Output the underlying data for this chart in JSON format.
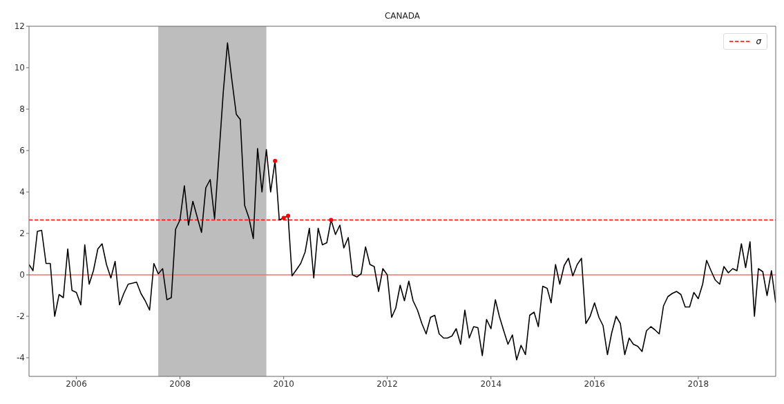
{
  "chart_data": {
    "type": "line",
    "title": "CANADA",
    "x": [
      "2005-02",
      "2005-03",
      "2005-04",
      "2005-05",
      "2005-06",
      "2005-07",
      "2005-08",
      "2005-09",
      "2005-10",
      "2005-11",
      "2005-12",
      "2006-01",
      "2006-02",
      "2006-03",
      "2006-04",
      "2006-05",
      "2006-06",
      "2006-07",
      "2006-08",
      "2006-09",
      "2006-10",
      "2006-11",
      "2006-12",
      "2007-01",
      "2007-02",
      "2007-03",
      "2007-04",
      "2007-05",
      "2007-06",
      "2007-07",
      "2007-08",
      "2007-09",
      "2007-10",
      "2007-11",
      "2007-12",
      "2008-01",
      "2008-02",
      "2008-03",
      "2008-04",
      "2008-05",
      "2008-06",
      "2008-07",
      "2008-08",
      "2008-09",
      "2008-10",
      "2008-11",
      "2008-12",
      "2009-01",
      "2009-02",
      "2009-03",
      "2009-04",
      "2009-05",
      "2009-06",
      "2009-07",
      "2009-08",
      "2009-09",
      "2009-10",
      "2009-11",
      "2009-12",
      "2010-01",
      "2010-02",
      "2010-03",
      "2010-04",
      "2010-05",
      "2010-06",
      "2010-07",
      "2010-08",
      "2010-09",
      "2010-10",
      "2010-11",
      "2010-12",
      "2011-01",
      "2011-02",
      "2011-03",
      "2011-04",
      "2011-05",
      "2011-06",
      "2011-07",
      "2011-08",
      "2011-09",
      "2011-10",
      "2011-11",
      "2011-12",
      "2012-01",
      "2012-02",
      "2012-03",
      "2012-04",
      "2012-05",
      "2012-06",
      "2012-07",
      "2012-08",
      "2012-09",
      "2012-10",
      "2012-11",
      "2012-12",
      "2013-01",
      "2013-02",
      "2013-03",
      "2013-04",
      "2013-05",
      "2013-06",
      "2013-07",
      "2013-08",
      "2013-09",
      "2013-10",
      "2013-11",
      "2013-12",
      "2014-01",
      "2014-02",
      "2014-03",
      "2014-04",
      "2014-05",
      "2014-06",
      "2014-07",
      "2014-08",
      "2014-09",
      "2014-10",
      "2014-11",
      "2014-12",
      "2015-01",
      "2015-02",
      "2015-03",
      "2015-04",
      "2015-05",
      "2015-06",
      "2015-07",
      "2015-08",
      "2015-09",
      "2015-10",
      "2015-11",
      "2015-12",
      "2016-01",
      "2016-02",
      "2016-03",
      "2016-04",
      "2016-05",
      "2016-06",
      "2016-07",
      "2016-08",
      "2016-09",
      "2016-10",
      "2016-11",
      "2016-12",
      "2017-01",
      "2017-02",
      "2017-03",
      "2017-04",
      "2017-05",
      "2017-06",
      "2017-07",
      "2017-08",
      "2017-09",
      "2017-10",
      "2017-11",
      "2017-12",
      "2018-01",
      "2018-02",
      "2018-03",
      "2018-04",
      "2018-05",
      "2018-06",
      "2018-07",
      "2018-08",
      "2018-09",
      "2018-10",
      "2018-11",
      "2018-12",
      "2019-01",
      "2019-02",
      "2019-03",
      "2019-04",
      "2019-05",
      "2019-06",
      "2019-07"
    ],
    "series": [
      {
        "type": "line",
        "color": "#000000",
        "values": [
          0.5,
          0.2,
          2.1,
          2.15,
          0.55,
          0.55,
          -2.0,
          -0.95,
          -1.1,
          1.25,
          -0.75,
          -0.85,
          -1.45,
          1.45,
          -0.45,
          0.2,
          1.25,
          1.5,
          0.5,
          -0.15,
          0.65,
          -1.45,
          -0.9,
          -0.45,
          -0.4,
          -0.35,
          -0.9,
          -1.25,
          -1.7,
          0.55,
          0.05,
          0.3,
          -1.2,
          -1.1,
          2.2,
          2.65,
          4.3,
          2.4,
          3.55,
          2.8,
          2.05,
          4.2,
          4.6,
          2.7,
          5.7,
          8.8,
          11.2,
          9.4,
          7.75,
          7.5,
          3.35,
          2.75,
          1.75,
          6.1,
          4.0,
          6.05,
          4.0,
          5.5,
          2.65,
          2.75,
          2.85,
          -0.05,
          0.25,
          0.55,
          1.1,
          2.25,
          -0.15,
          2.25,
          1.45,
          1.55,
          2.65,
          1.95,
          2.4,
          1.3,
          1.8,
          0.0,
          -0.1,
          0.05,
          1.35,
          0.5,
          0.4,
          -0.8,
          0.3,
          0.0,
          -2.05,
          -1.6,
          -0.5,
          -1.25,
          -0.3,
          -1.25,
          -1.7,
          -2.35,
          -2.85,
          -2.05,
          -1.95,
          -2.85,
          -3.05,
          -3.05,
          -2.95,
          -2.6,
          -3.35,
          -1.7,
          -3.05,
          -2.5,
          -2.55,
          -3.9,
          -2.15,
          -2.6,
          -1.2,
          -2.0,
          -2.7,
          -3.35,
          -2.9,
          -4.1,
          -3.4,
          -3.85,
          -1.95,
          -1.8,
          -2.5,
          -0.55,
          -0.65,
          -1.35,
          0.5,
          -0.45,
          0.45,
          0.8,
          -0.05,
          0.5,
          0.8,
          -2.35,
          -2.0,
          -1.35,
          -2.05,
          -2.45,
          -3.85,
          -2.8,
          -2.0,
          -2.35,
          -3.85,
          -3.05,
          -3.35,
          -3.45,
          -3.7,
          -2.7,
          -2.5,
          -2.65,
          -2.85,
          -1.5,
          -1.05,
          -0.9,
          -0.8,
          -0.95,
          -1.55,
          -1.55,
          -0.85,
          -1.15,
          -0.45,
          0.7,
          0.2,
          -0.25,
          -0.45,
          0.4,
          0.1,
          0.3,
          0.2,
          1.5,
          0.35,
          1.6,
          -2.0,
          0.3,
          0.15,
          -1.0,
          0.2,
          -1.35
        ]
      },
      {
        "type": "scatter",
        "color": "#ff0000",
        "marker": "circle",
        "x": [
          "2009-11",
          "2010-01",
          "2010-02",
          "2010-12"
        ],
        "values": [
          5.5,
          2.75,
          2.85,
          2.65
        ]
      }
    ],
    "xlim": [
      "2005-02",
      "2019-07"
    ],
    "xticks": [
      "2006",
      "2008",
      "2010",
      "2012",
      "2014",
      "2016",
      "2018"
    ],
    "ylim": [
      -4.9,
      12
    ],
    "yticks": [
      -4,
      -2,
      0,
      2,
      4,
      6,
      8,
      10,
      12
    ],
    "ref_lines": [
      {
        "axis": "y",
        "value": 0,
        "color": "#f07070",
        "line_style": "solid"
      },
      {
        "axis": "y",
        "value": 2.65,
        "label": "σ",
        "color": "#ff0000",
        "line_style": "dashed"
      }
    ],
    "bands": [
      {
        "axis": "x",
        "from": "2007-08",
        "to": "2009-09",
        "color": "#bdbdbd"
      }
    ],
    "legend": "top right",
    "marker": "none",
    "line_style": "solid",
    "grid": false
  }
}
